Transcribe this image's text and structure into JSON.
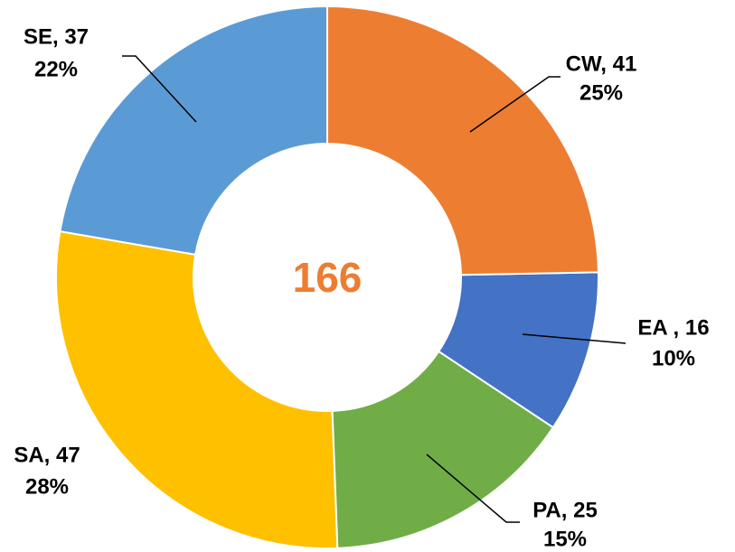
{
  "chart_data": {
    "type": "donut",
    "values": [
      41,
      16,
      25,
      47,
      37
    ],
    "value_labels": [
      "CW, 41",
      "EA , 16",
      "PA, 25",
      "SA, 47",
      "SE, 37"
    ],
    "percent_labels": [
      "25%",
      "10%",
      "15%",
      "28%",
      "22%"
    ],
    "colors": [
      "#ed7d31",
      "#4472c4",
      "#70ad47",
      "#ffc000",
      "#5b9bd5"
    ],
    "center_label": 166
  }
}
